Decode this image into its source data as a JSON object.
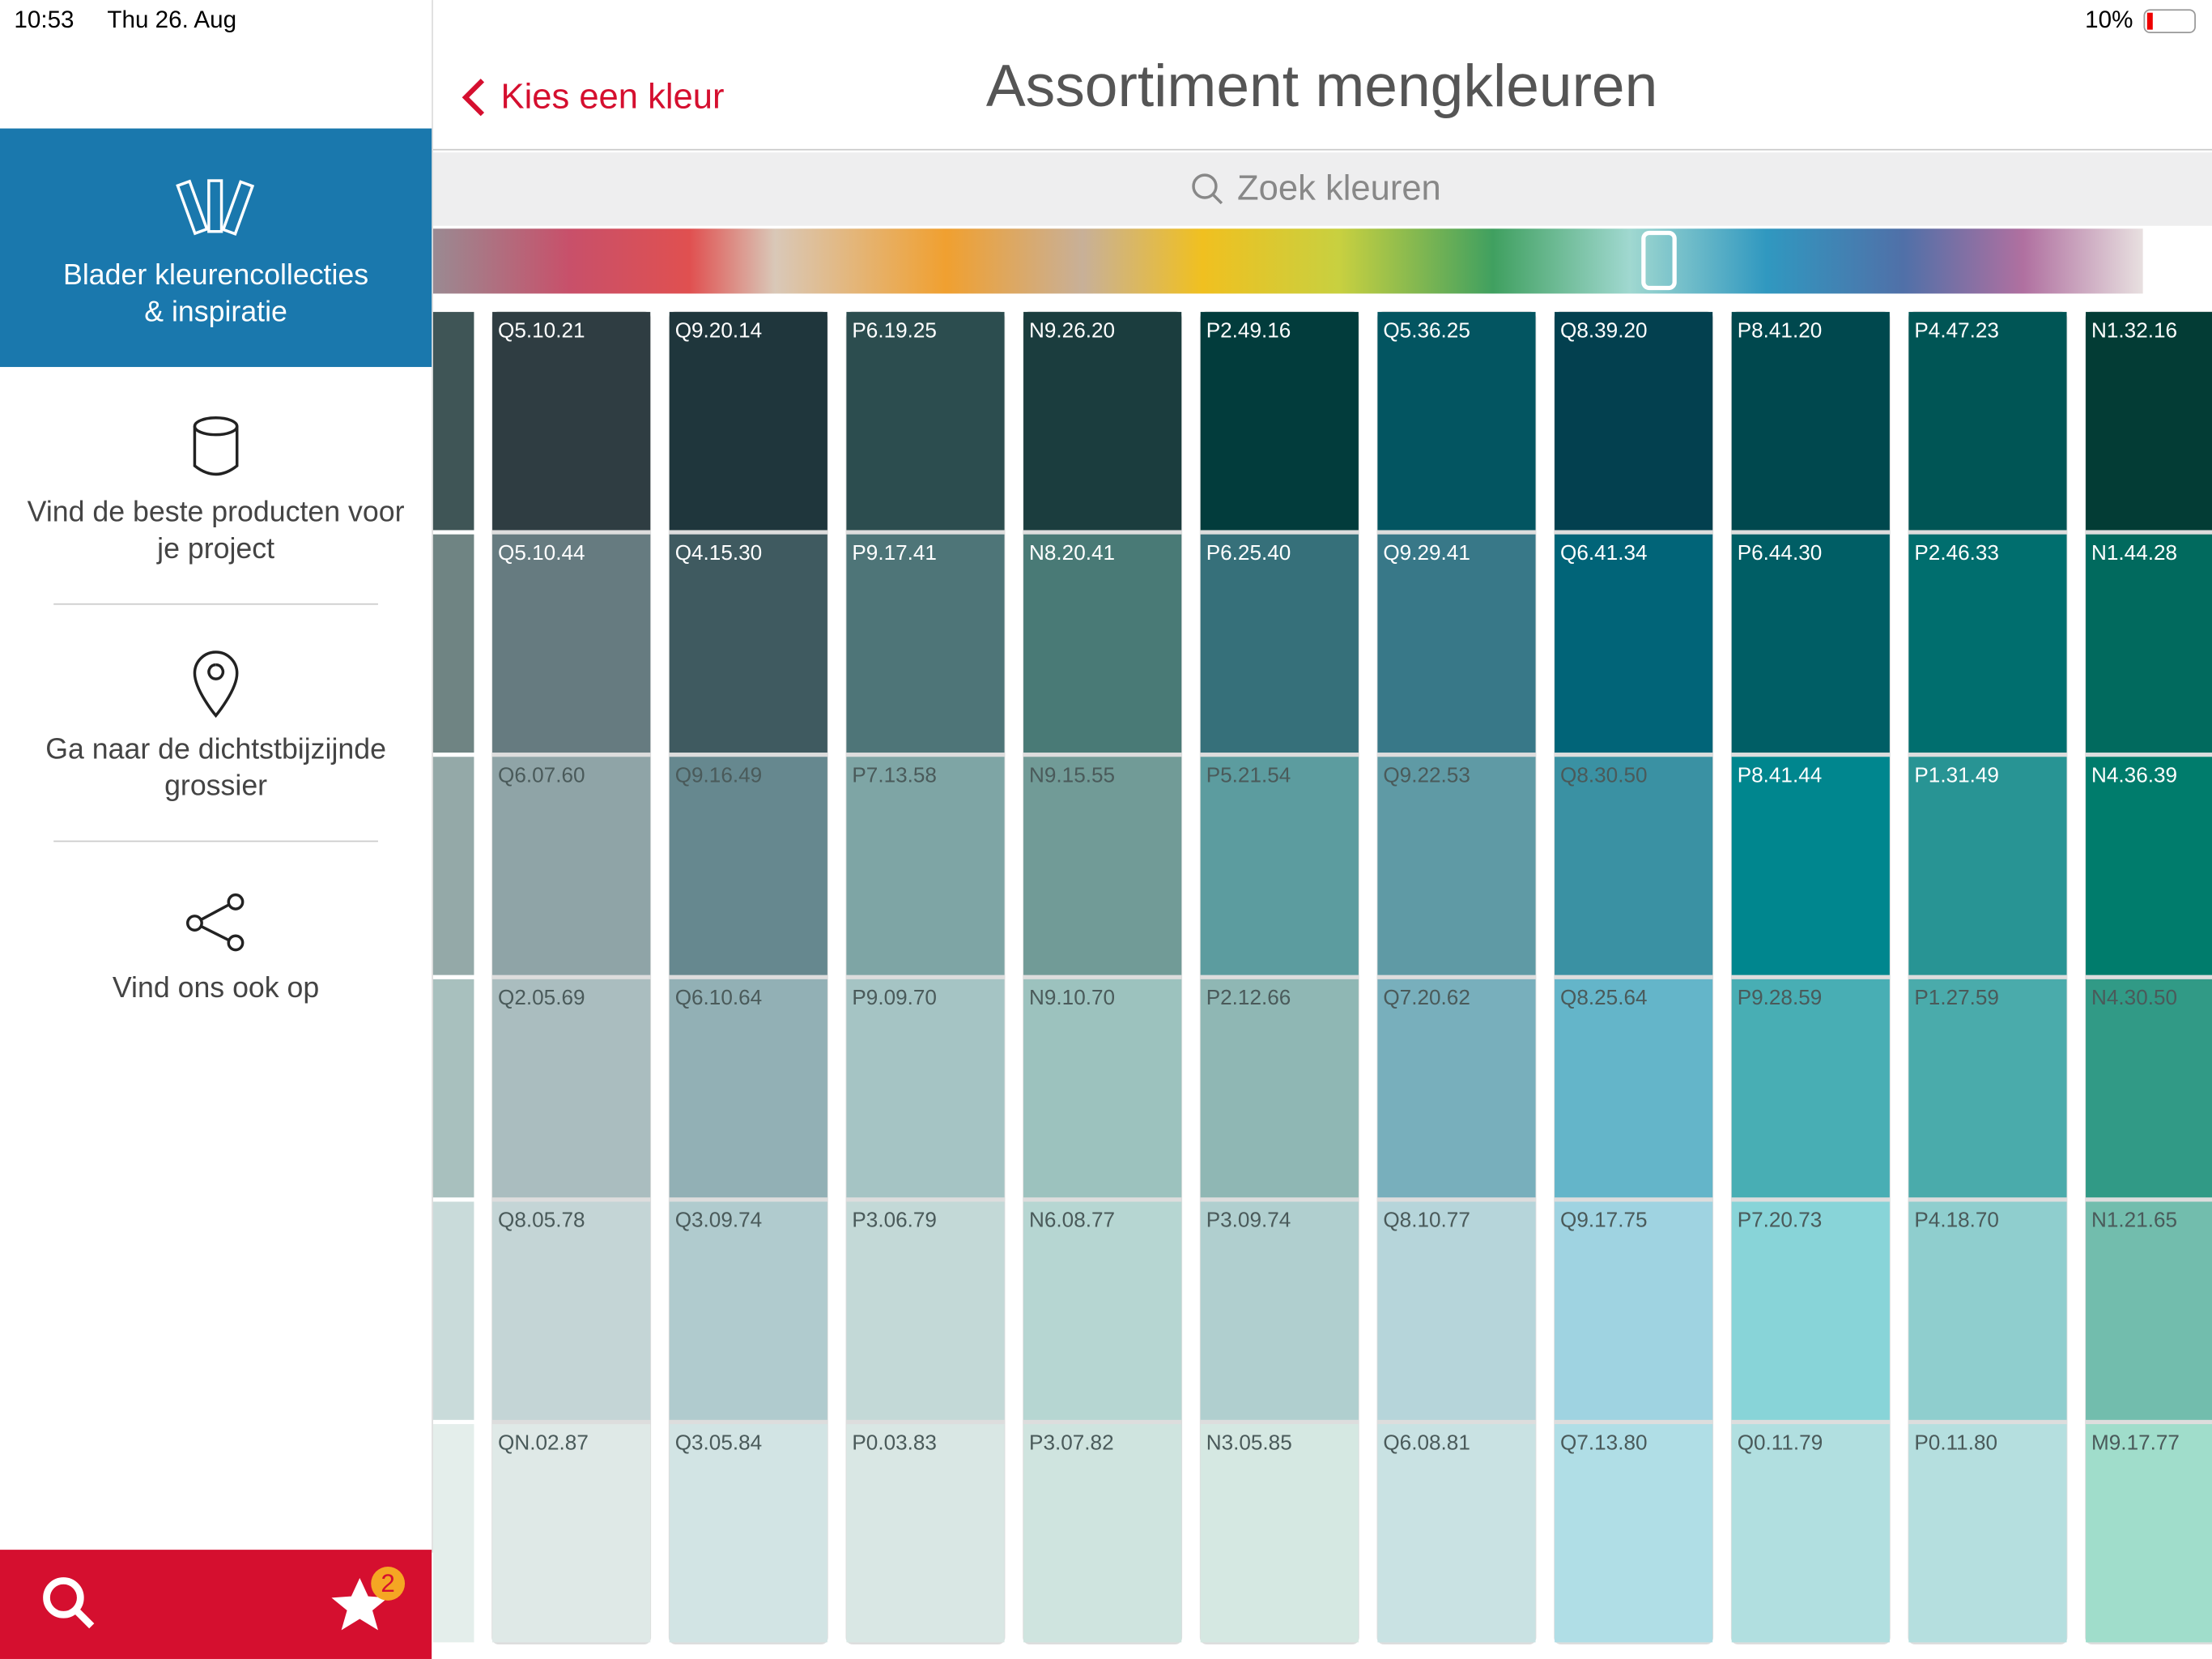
{
  "status_bar": {
    "time": "10:53",
    "date": "Thu 26. Aug",
    "battery": "10%"
  },
  "sidebar": {
    "items": [
      {
        "lines": [
          "Blader kleurencollecties",
          "& inspiratie"
        ]
      },
      {
        "lines": [
          "Vind de beste producten voor",
          "je project"
        ]
      },
      {
        "lines": [
          "Ga naar de dichtstbijzijnde",
          "grossier"
        ]
      },
      {
        "lines": [
          "Vind ons ook op"
        ]
      }
    ],
    "favorites_badge": "2"
  },
  "nav": {
    "back": "Kies een kleur",
    "title": "Assortiment mengkleuren",
    "search_placeholder": "Zoek kleuren"
  },
  "partial_column": {
    "colors": [
      "#3f5556",
      "#6f8483",
      "#94a9a8",
      "#a8c0be",
      "#c9dbda",
      "#e4eeeb"
    ]
  },
  "columns": [
    {
      "labels": [
        "Q5.10.21",
        "Q5.10.44",
        "Q6.07.60",
        "Q2.05.69",
        "Q8.05.78",
        "QN.02.87"
      ],
      "colors": [
        "#2f3d42",
        "#667b80",
        "#8fa4a7",
        "#aabdbf",
        "#c4d5d6",
        "#dfe9e7"
      ]
    },
    {
      "labels": [
        "Q9.20.14",
        "Q4.15.30",
        "Q9.16.49",
        "Q6.10.64",
        "Q3.09.74",
        "Q3.05.84"
      ],
      "colors": [
        "#1f363c",
        "#3f5a60",
        "#66888f",
        "#92b0b5",
        "#b0cbce",
        "#d2e4e4"
      ]
    },
    {
      "labels": [
        "P6.19.25",
        "P9.17.41",
        "P7.13.58",
        "P9.09.70",
        "P3.06.79",
        "P0.03.83"
      ],
      "colors": [
        "#2c4d4f",
        "#4e7578",
        "#7ea5a5",
        "#a5c4c4",
        "#c3d9d7",
        "#d9e7e4"
      ]
    },
    {
      "labels": [
        "N9.26.20",
        "N8.20.41",
        "N9.15.55",
        "N9.10.70",
        "N6.08.77",
        "P3.07.82"
      ],
      "colors": [
        "#1b3d3e",
        "#497a76",
        "#719b97",
        "#9cc2be",
        "#b6d6d2",
        "#cfe4df"
      ]
    },
    {
      "labels": [
        "P2.49.16",
        "P6.25.40",
        "P5.21.54",
        "P2.12.66",
        "P3.09.74",
        "N3.05.85"
      ],
      "colors": [
        "#023c3c",
        "#36707a",
        "#5c9c9f",
        "#8fb7b4",
        "#b0cfcf",
        "#d5e8e2"
      ]
    },
    {
      "labels": [
        "Q5.36.25",
        "Q9.29.41",
        "Q9.22.53",
        "Q7.20.62",
        "Q8.10.77",
        "Q6.08.81"
      ],
      "colors": [
        "#035561",
        "#387888",
        "#5f9aa5",
        "#78afbc",
        "#b6d5da",
        "#c9e2e3"
      ]
    },
    {
      "labels": [
        "Q8.39.20",
        "Q6.41.34",
        "Q8.30.50",
        "Q8.25.64",
        "Q9.17.75",
        "Q7.13.80"
      ],
      "colors": [
        "#03404f",
        "#016478",
        "#3a91a3",
        "#64b5c9",
        "#9fd3e1",
        "#b0dee6"
      ]
    },
    {
      "labels": [
        "P8.41.20",
        "P6.44.30",
        "P8.41.44",
        "P9.28.59",
        "P7.20.73",
        "Q0.11.79"
      ],
      "colors": [
        "#00484e",
        "#005e65",
        "#00868e",
        "#48aeb4",
        "#88d4d8",
        "#b1dfe0"
      ]
    },
    {
      "labels": [
        "P4.47.23",
        "P2.46.33",
        "P1.31.49",
        "P1.27.59",
        "P4.18.70",
        "P0.11.80"
      ],
      "colors": [
        "#005555",
        "#006e6e",
        "#289494",
        "#4aabab",
        "#8fcece",
        "#b5dfdf"
      ]
    },
    {
      "labels": [
        "N1.32.16",
        "N1.44.28",
        "N4.36.39",
        "N4.30.50",
        "N1.21.65",
        "M9.17.77"
      ],
      "colors": [
        "#033c35",
        "#016a5e",
        "#007c6c",
        "#319a86",
        "#72bdad",
        "#a0ddcb"
      ]
    }
  ]
}
